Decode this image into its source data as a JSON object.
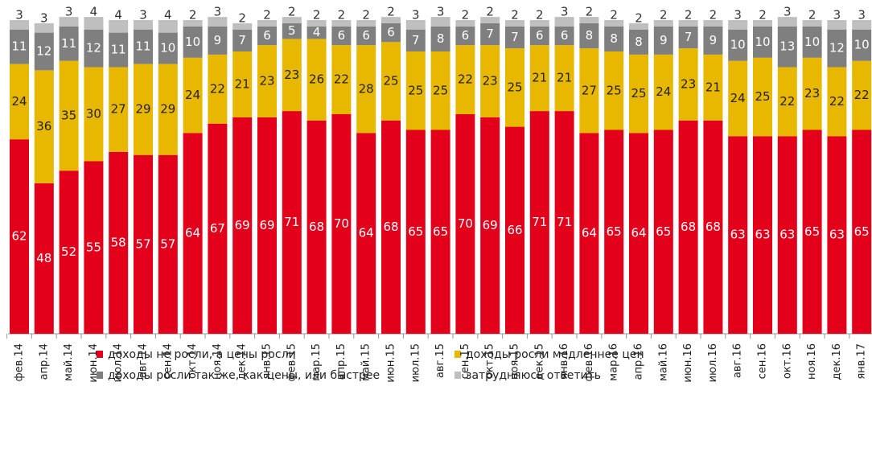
{
  "chart_data": {
    "type": "bar",
    "stacked": true,
    "categories": [
      "фев.14",
      "апр.14",
      "май.14",
      "июн.14",
      "июл.14",
      "авг.14",
      "сен.14",
      "окт.14",
      "ноя.14",
      "дек.14",
      "янв.15",
      "фев.15",
      "мар.15",
      "апр.15",
      "май.15",
      "июн.15",
      "июл.15",
      "авг.15",
      "сен.15",
      "окт.15",
      "ноя.15",
      "дек.15",
      "янв.16",
      "фев.16",
      "мар.16",
      "апр.16",
      "май.16",
      "июн.16",
      "июл.16",
      "авг.16",
      "сен.16",
      "окт.16",
      "ноя.16",
      "дек.16",
      "янв.17"
    ],
    "series": [
      {
        "name": "доходы не росли, а цены росли",
        "color": "#e2001a",
        "values": [
          62,
          48,
          52,
          55,
          58,
          57,
          57,
          64,
          67,
          69,
          69,
          71,
          68,
          70,
          64,
          68,
          65,
          65,
          70,
          69,
          66,
          71,
          71,
          64,
          65,
          64,
          65,
          68,
          68,
          63,
          63,
          63,
          65,
          63,
          65
        ]
      },
      {
        "name": "доходы росли медленнее цен",
        "color": "#e8b800",
        "values": [
          24,
          36,
          35,
          30,
          27,
          29,
          29,
          24,
          22,
          21,
          23,
          23,
          26,
          22,
          28,
          25,
          25,
          25,
          22,
          23,
          25,
          21,
          21,
          27,
          25,
          25,
          24,
          23,
          21,
          24,
          25,
          22,
          23,
          22,
          22
        ]
      },
      {
        "name": "доходы росли так же, как цены, или быстрее",
        "color": "#7f7f7f",
        "values": [
          11,
          12,
          11,
          12,
          11,
          11,
          10,
          10,
          9,
          7,
          6,
          5,
          4,
          6,
          6,
          6,
          7,
          8,
          6,
          7,
          7,
          6,
          6,
          8,
          8,
          8,
          9,
          7,
          9,
          10,
          10,
          13,
          10,
          12,
          10
        ]
      },
      {
        "name": "затрудняюсь ответить",
        "color": "#bfbfbf",
        "values": [
          3,
          3,
          3,
          4,
          4,
          3,
          4,
          2,
          3,
          2,
          2,
          2,
          2,
          2,
          2,
          2,
          3,
          3,
          2,
          2,
          2,
          2,
          3,
          2,
          2,
          2,
          2,
          2,
          2,
          3,
          2,
          3,
          2,
          3,
          3
        ]
      }
    ],
    "ylim": [
      0,
      100
    ]
  }
}
